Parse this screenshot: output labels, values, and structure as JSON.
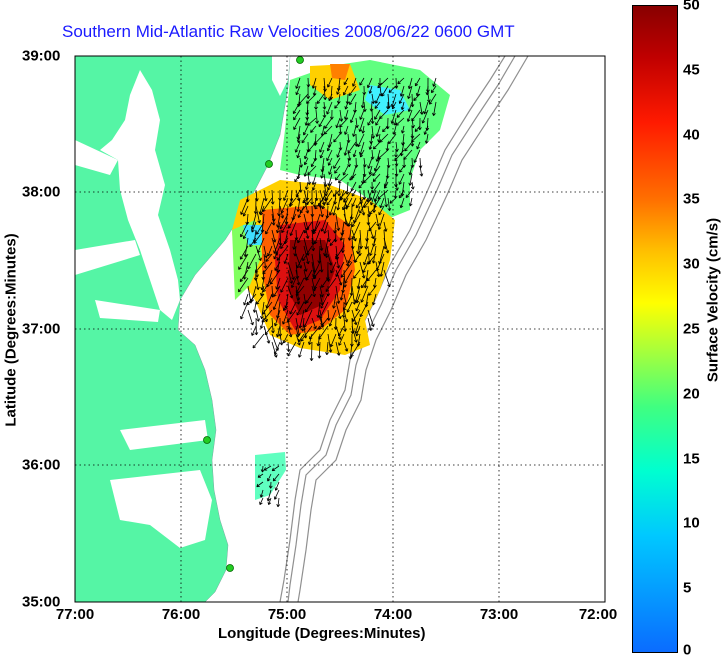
{
  "title": "Southern Mid-Atlantic Raw Velocities 2008/06/22 0600 GMT",
  "xlabel": "Longitude (Degrees:Minutes)",
  "ylabel": "Latitude (Degrees:Minutes)",
  "colorbar": {
    "label": "Surface Velocity (cm/s)",
    "ticks": [
      "50",
      "45",
      "40",
      "35",
      "30",
      "25",
      "20",
      "15",
      "10",
      "5",
      "0"
    ],
    "range": [
      0,
      50
    ]
  },
  "map": {
    "x_ticks": [
      "77:00",
      "76:00",
      "75:00",
      "74:00",
      "73:00",
      "72:00"
    ],
    "y_ticks": [
      "39:00",
      "38:00",
      "37:00",
      "36:00",
      "35:00"
    ],
    "lon_range": [
      -77,
      -72
    ],
    "lat_range": [
      35,
      39
    ],
    "grid": true,
    "colors": {
      "land": "#55f5a5",
      "bathymetry": "#909090",
      "station": "#22cc22",
      "arrow": "#000000"
    }
  }
}
